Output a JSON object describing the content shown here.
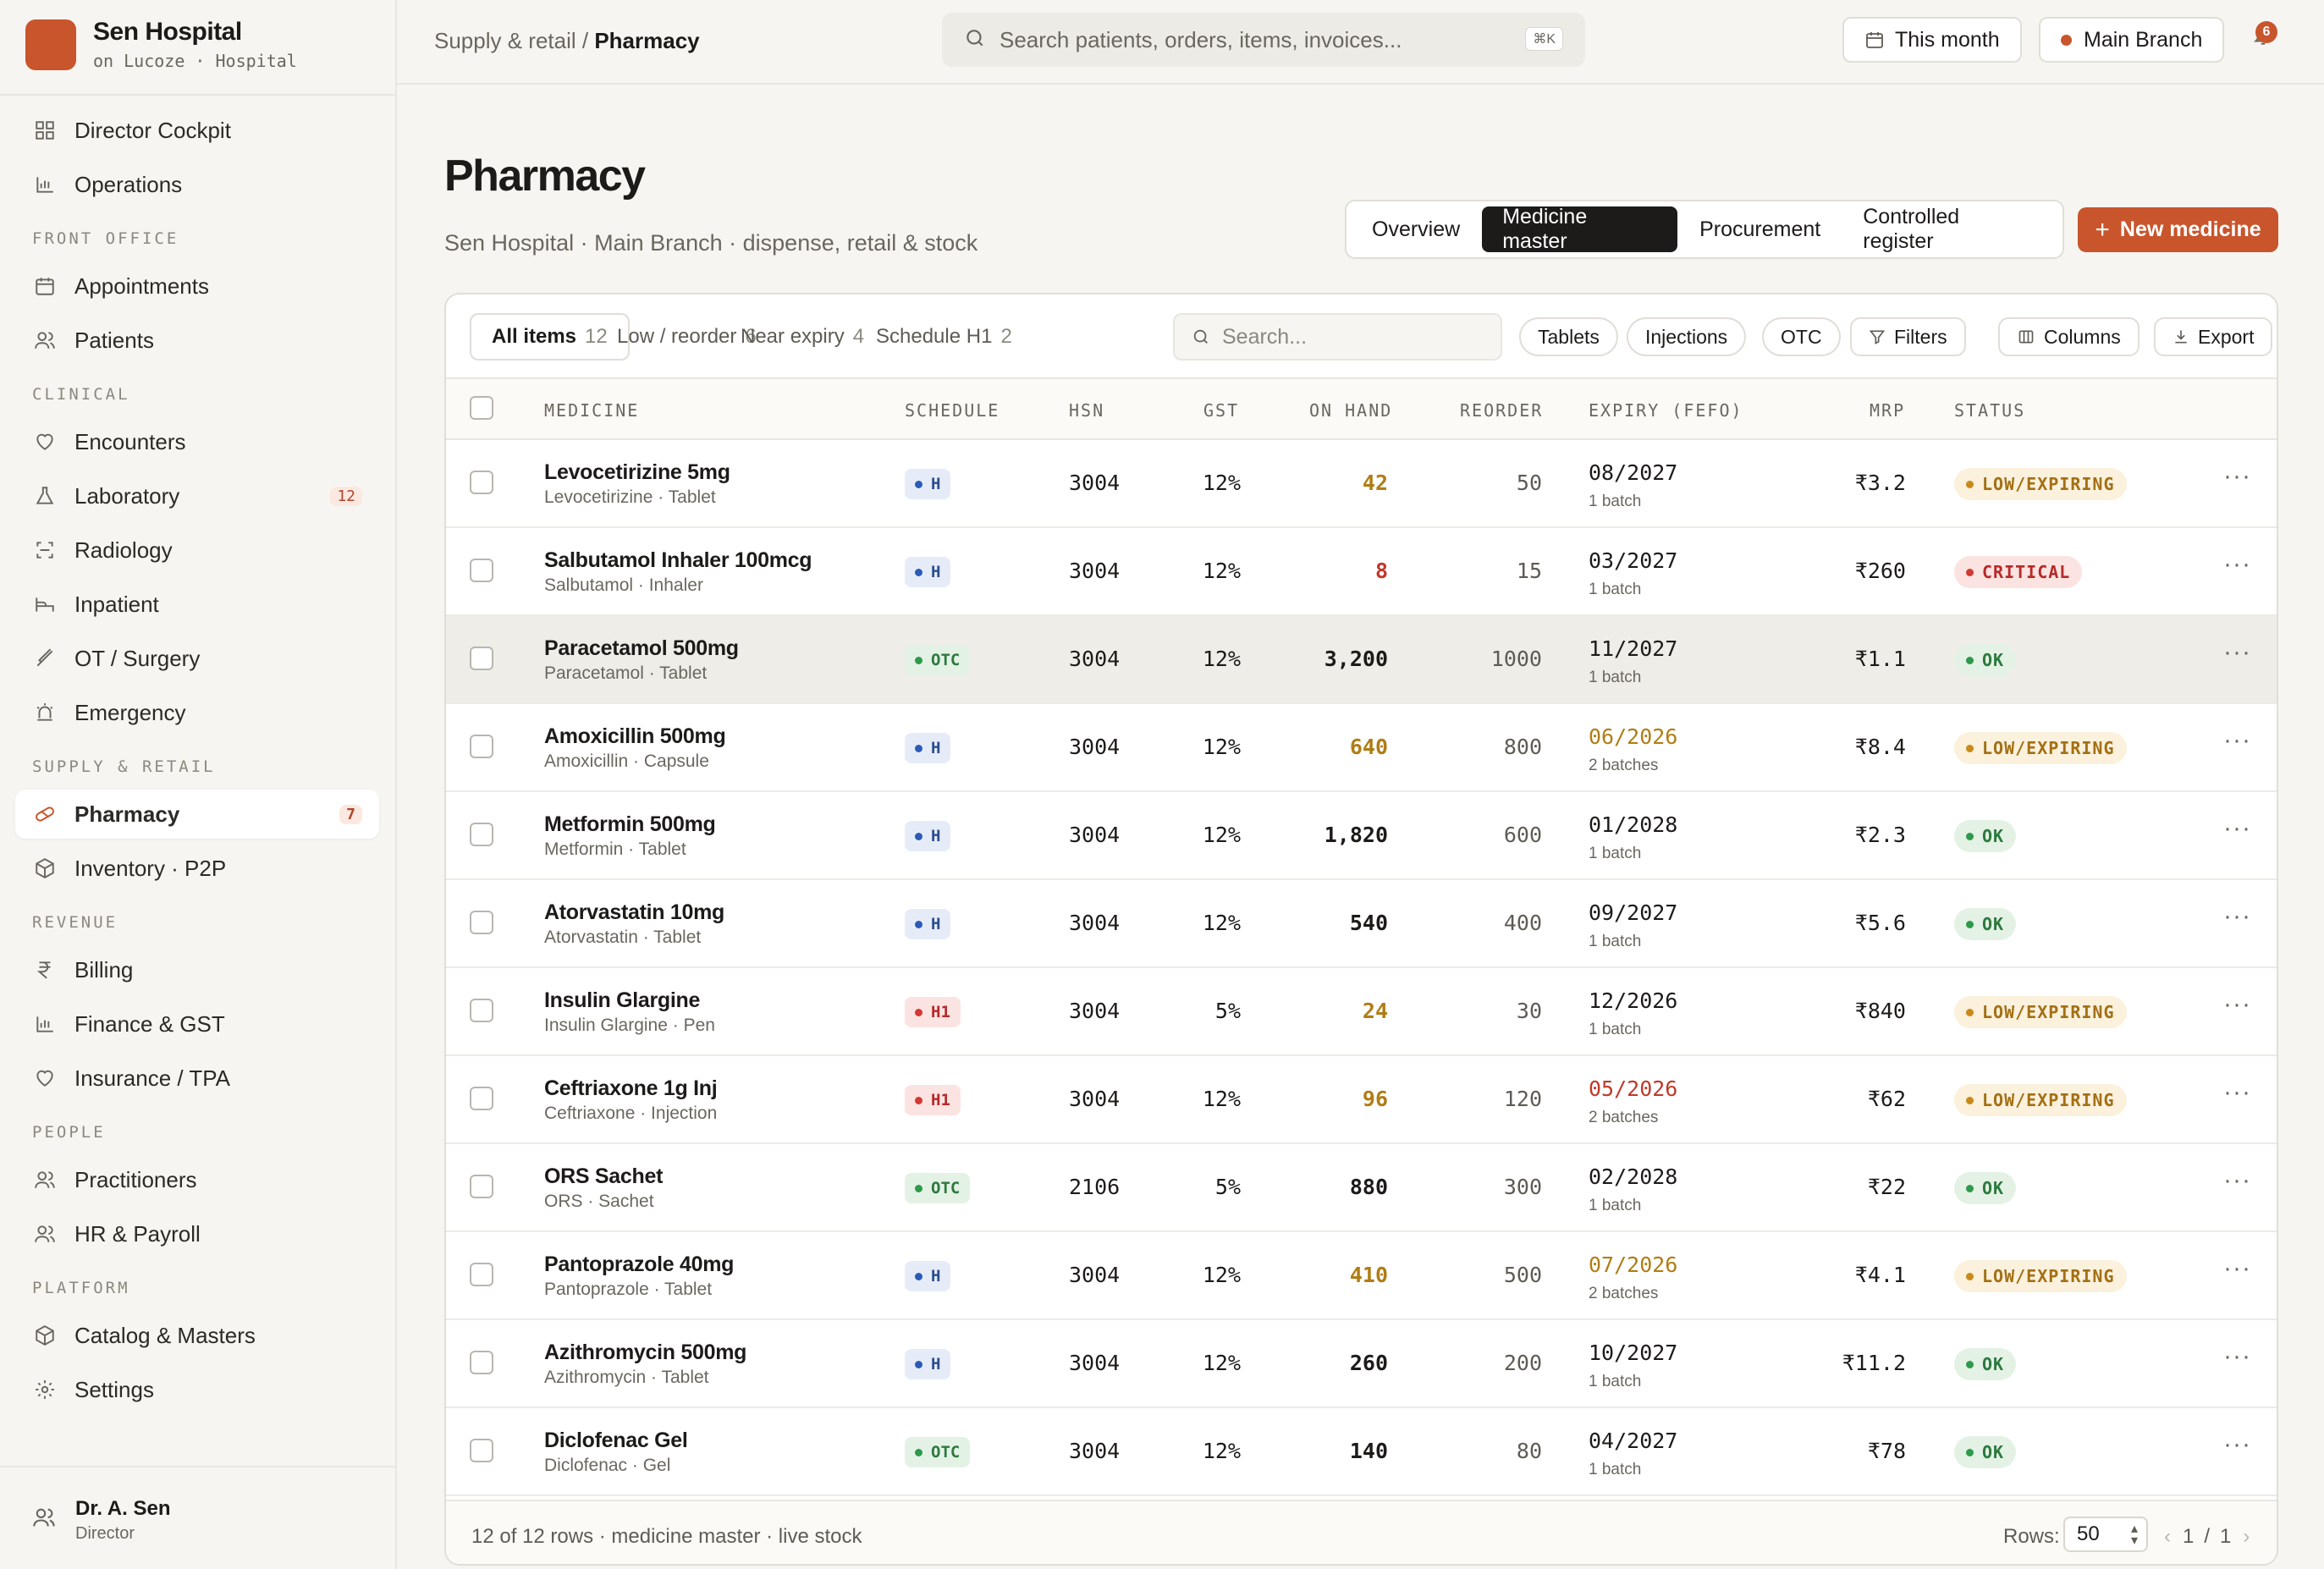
{
  "brand": {
    "name": "Sen Hospital",
    "sub": "on Lucoze · Hospital"
  },
  "sidebar": {
    "top": [
      {
        "label": "Director Cockpit",
        "icon": "grid-icon"
      },
      {
        "label": "Operations",
        "icon": "bar-chart-icon"
      }
    ],
    "sections": [
      {
        "title": "FRONT OFFICE",
        "items": [
          {
            "label": "Appointments",
            "icon": "calendar-icon"
          },
          {
            "label": "Patients",
            "icon": "users-icon"
          }
        ]
      },
      {
        "title": "CLINICAL",
        "items": [
          {
            "label": "Encounters",
            "icon": "heart-icon"
          },
          {
            "label": "Laboratory",
            "icon": "flask-icon",
            "badge": "12"
          },
          {
            "label": "Radiology",
            "icon": "scan-icon"
          },
          {
            "label": "Inpatient",
            "icon": "bed-icon"
          },
          {
            "label": "OT / Surgery",
            "icon": "scalpel-icon"
          },
          {
            "label": "Emergency",
            "icon": "siren-icon"
          }
        ]
      },
      {
        "title": "SUPPLY & RETAIL",
        "items": [
          {
            "label": "Pharmacy",
            "icon": "pill-icon",
            "badge": "7",
            "active": true
          },
          {
            "label": "Inventory · P2P",
            "icon": "box-icon"
          }
        ]
      },
      {
        "title": "REVENUE",
        "items": [
          {
            "label": "Billing",
            "icon": "rupee-icon"
          },
          {
            "label": "Finance & GST",
            "icon": "bar-chart-icon"
          },
          {
            "label": "Insurance / TPA",
            "icon": "heart-icon"
          }
        ]
      },
      {
        "title": "PEOPLE",
        "items": [
          {
            "label": "Practitioners",
            "icon": "users-icon"
          },
          {
            "label": "HR & Payroll",
            "icon": "users-icon"
          }
        ]
      },
      {
        "title": "PLATFORM",
        "items": [
          {
            "label": "Catalog & Masters",
            "icon": "box-icon"
          },
          {
            "label": "Settings",
            "icon": "gear-icon"
          }
        ]
      }
    ],
    "user": {
      "name": "Dr. A. Sen",
      "role": "Director"
    }
  },
  "topbar": {
    "crumb_parent": "Supply & retail",
    "crumb_sep": " / ",
    "crumb_current": "Pharmacy",
    "search_placeholder": "Search patients, orders, items, invoices...",
    "search_kbd": "⌘K",
    "period": "This month",
    "branch": "Main Branch",
    "notifications": "6"
  },
  "page": {
    "title": "Pharmacy",
    "subtitle": "Sen Hospital · Main Branch · dispense, retail & stock",
    "tabs": [
      "Overview",
      "Medicine master",
      "Procurement",
      "Controlled register"
    ],
    "active_tab": 1,
    "new_button": "New medicine"
  },
  "filters": {
    "tabs": [
      {
        "label": "All items",
        "count": "12"
      },
      {
        "label": "Low / reorder",
        "count": "6"
      },
      {
        "label": "Near expiry",
        "count": "4"
      },
      {
        "label": "Schedule H1",
        "count": "2"
      }
    ],
    "search_placeholder": "Search...",
    "chips": [
      "Tablets",
      "Injections",
      "OTC"
    ],
    "filters_label": "Filters",
    "columns_label": "Columns",
    "export_label": "Export"
  },
  "table": {
    "headers": {
      "medicine": "MEDICINE",
      "schedule": "SCHEDULE",
      "hsn": "HSN",
      "gst": "GST",
      "on_hand": "ON HAND",
      "reorder": "REORDER",
      "expiry": "EXPIRY (FEFO)",
      "mrp": "MRP",
      "status": "STATUS"
    },
    "rows": [
      {
        "name": "Levocetirizine 5mg",
        "sub": "Levocetirizine · Tablet",
        "schedule": "H",
        "hsn": "3004",
        "gst": "12%",
        "on_hand": "42",
        "on_hand_tone": "amber",
        "reorder": "50",
        "expiry": "08/2027",
        "expiry_tone": "",
        "batches": "1 batch",
        "mrp": "₹3.2",
        "status": "LOW/EXPIRING",
        "status_tone": "warn"
      },
      {
        "name": "Salbutamol Inhaler 100mcg",
        "sub": "Salbutamol · Inhaler",
        "schedule": "H",
        "hsn": "3004",
        "gst": "12%",
        "on_hand": "8",
        "on_hand_tone": "red",
        "reorder": "15",
        "expiry": "03/2027",
        "expiry_tone": "",
        "batches": "1 batch",
        "mrp": "₹260",
        "status": "CRITICAL",
        "status_tone": "crit"
      },
      {
        "name": "Paracetamol 500mg",
        "sub": "Paracetamol · Tablet",
        "schedule": "OTC",
        "hsn": "3004",
        "gst": "12%",
        "on_hand": "3,200",
        "on_hand_tone": "",
        "reorder": "1000",
        "expiry": "11/2027",
        "expiry_tone": "",
        "batches": "1 batch",
        "mrp": "₹1.1",
        "status": "OK",
        "status_tone": "ok"
      },
      {
        "name": "Amoxicillin 500mg",
        "sub": "Amoxicillin · Capsule",
        "schedule": "H",
        "hsn": "3004",
        "gst": "12%",
        "on_hand": "640",
        "on_hand_tone": "amber",
        "reorder": "800",
        "expiry": "06/2026",
        "expiry_tone": "amber",
        "batches": "2 batches",
        "mrp": "₹8.4",
        "status": "LOW/EXPIRING",
        "status_tone": "warn"
      },
      {
        "name": "Metformin 500mg",
        "sub": "Metformin · Tablet",
        "schedule": "H",
        "hsn": "3004",
        "gst": "12%",
        "on_hand": "1,820",
        "on_hand_tone": "",
        "reorder": "600",
        "expiry": "01/2028",
        "expiry_tone": "",
        "batches": "1 batch",
        "mrp": "₹2.3",
        "status": "OK",
        "status_tone": "ok"
      },
      {
        "name": "Atorvastatin 10mg",
        "sub": "Atorvastatin · Tablet",
        "schedule": "H",
        "hsn": "3004",
        "gst": "12%",
        "on_hand": "540",
        "on_hand_tone": "",
        "reorder": "400",
        "expiry": "09/2027",
        "expiry_tone": "",
        "batches": "1 batch",
        "mrp": "₹5.6",
        "status": "OK",
        "status_tone": "ok"
      },
      {
        "name": "Insulin Glargine",
        "sub": "Insulin Glargine · Pen",
        "schedule": "H1",
        "hsn": "3004",
        "gst": "5%",
        "on_hand": "24",
        "on_hand_tone": "amber",
        "reorder": "30",
        "expiry": "12/2026",
        "expiry_tone": "",
        "batches": "1 batch",
        "mrp": "₹840",
        "status": "LOW/EXPIRING",
        "status_tone": "warn"
      },
      {
        "name": "Ceftriaxone 1g Inj",
        "sub": "Ceftriaxone · Injection",
        "schedule": "H1",
        "hsn": "3004",
        "gst": "12%",
        "on_hand": "96",
        "on_hand_tone": "amber",
        "reorder": "120",
        "expiry": "05/2026",
        "expiry_tone": "red",
        "batches": "2 batches",
        "mrp": "₹62",
        "status": "LOW/EXPIRING",
        "status_tone": "warn"
      },
      {
        "name": "ORS Sachet",
        "sub": "ORS · Sachet",
        "schedule": "OTC",
        "hsn": "2106",
        "gst": "5%",
        "on_hand": "880",
        "on_hand_tone": "",
        "reorder": "300",
        "expiry": "02/2028",
        "expiry_tone": "",
        "batches": "1 batch",
        "mrp": "₹22",
        "status": "OK",
        "status_tone": "ok"
      },
      {
        "name": "Pantoprazole 40mg",
        "sub": "Pantoprazole · Tablet",
        "schedule": "H",
        "hsn": "3004",
        "gst": "12%",
        "on_hand": "410",
        "on_hand_tone": "amber",
        "reorder": "500",
        "expiry": "07/2026",
        "expiry_tone": "amber",
        "batches": "2 batches",
        "mrp": "₹4.1",
        "status": "LOW/EXPIRING",
        "status_tone": "warn"
      },
      {
        "name": "Azithromycin 500mg",
        "sub": "Azithromycin · Tablet",
        "schedule": "H",
        "hsn": "3004",
        "gst": "12%",
        "on_hand": "260",
        "on_hand_tone": "",
        "reorder": "200",
        "expiry": "10/2027",
        "expiry_tone": "",
        "batches": "1 batch",
        "mrp": "₹11.2",
        "status": "OK",
        "status_tone": "ok"
      },
      {
        "name": "Diclofenac Gel",
        "sub": "Diclofenac · Gel",
        "schedule": "OTC",
        "hsn": "3004",
        "gst": "12%",
        "on_hand": "140",
        "on_hand_tone": "",
        "reorder": "80",
        "expiry": "04/2027",
        "expiry_tone": "",
        "batches": "1 batch",
        "mrp": "₹78",
        "status": "OK",
        "status_tone": "ok"
      }
    ],
    "highlighted_row": 2,
    "footer": "12 of 12 rows · medicine master · live stock",
    "rows_label": "Rows:",
    "rows_value": "50",
    "page_current": "1",
    "page_total": "1"
  },
  "colors": {
    "accent": "#c8552c",
    "warn": "#b07d15",
    "critical": "#c0392b",
    "ok": "#2c7a3e",
    "schedule_h": "#2b4e8c"
  }
}
